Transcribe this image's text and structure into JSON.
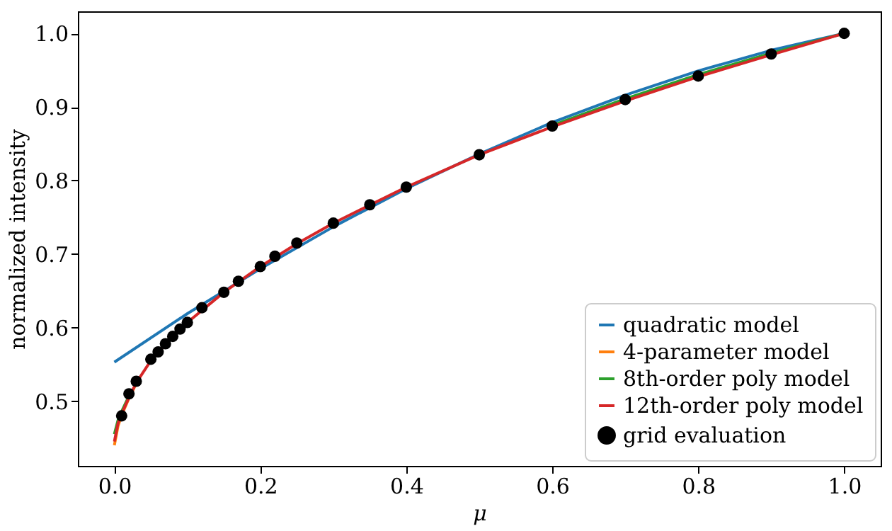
{
  "chart_data": {
    "type": "line",
    "xlabel": "μ",
    "ylabel": "normalized intensity",
    "xlim": [
      -0.05,
      1.05
    ],
    "ylim": [
      0.412,
      1.03
    ],
    "xticks": [
      {
        "value": 0,
        "label": "0.0"
      },
      0.2,
      0.4,
      0.6,
      0.8,
      {
        "value": 1,
        "label": "1.0"
      }
    ],
    "yticks": [
      0.5,
      0.6,
      0.7,
      0.8,
      0.9,
      {
        "value": 1,
        "label": "1.0"
      }
    ],
    "grid": false,
    "legend": "bottom right",
    "marker": "none",
    "line_style": "solid",
    "series": [
      {
        "name": "quadratic model",
        "color": "#1f77b4",
        "x": [
          0,
          0.1,
          0.2,
          0.3,
          0.4,
          0.5,
          0.6,
          0.7,
          0.8,
          0.9,
          1.0
        ],
        "values": [
          0.553,
          0.619,
          0.68,
          0.737,
          0.789,
          0.836,
          0.879,
          0.916,
          0.949,
          0.977,
          1.0
        ]
      },
      {
        "name": "4-parameter model",
        "color": "#ff7f0e",
        "x": [
          0,
          0.005,
          0.01,
          0.02,
          0.03
        ],
        "values": [
          0.44,
          0.466,
          0.481,
          0.504,
          0.524
        ]
      },
      {
        "name": "8th-order poly model",
        "color": "#2ca02c",
        "x": [
          0,
          0.005,
          0.01,
          0.02,
          0.3,
          0.6,
          0.7,
          0.8,
          0.9,
          1.0
        ],
        "values": [
          0.455,
          0.474,
          0.486,
          0.507,
          null,
          0.875,
          0.911,
          0.944,
          0.973,
          1.0
        ]
      },
      {
        "name": "12th-order poly model",
        "color": "#d62728",
        "x": [
          0,
          0.005,
          0.01,
          0.02,
          0.03,
          0.05,
          0.075,
          0.1,
          0.15,
          0.2,
          0.25,
          0.3,
          0.4,
          0.5,
          0.6,
          0.7,
          0.8,
          0.9,
          1.0
        ],
        "values": [
          0.445,
          0.47,
          0.483,
          0.505,
          0.525,
          0.555,
          0.583,
          0.607,
          0.648,
          0.683,
          0.714,
          0.742,
          0.791,
          0.835,
          0.873,
          0.908,
          0.941,
          0.971,
          1.0
        ]
      },
      {
        "name": "grid evaluation",
        "color": "#000000",
        "type": "scatter",
        "marker": "circle",
        "x": [
          0.01,
          0.02,
          0.03,
          0.05,
          0.06,
          0.07,
          0.08,
          0.09,
          0.1,
          0.12,
          0.15,
          0.17,
          0.2,
          0.22,
          0.25,
          0.3,
          0.35,
          0.4,
          0.5,
          0.6,
          0.7,
          0.8,
          0.9,
          1.0
        ],
        "values": [
          0.48,
          0.51,
          0.527,
          0.557,
          0.567,
          0.578,
          0.588,
          0.598,
          0.607,
          0.627,
          0.648,
          0.663,
          0.683,
          0.697,
          0.715,
          0.742,
          0.767,
          0.791,
          0.835,
          0.874,
          0.91,
          0.942,
          0.972,
          1.0
        ]
      }
    ]
  }
}
